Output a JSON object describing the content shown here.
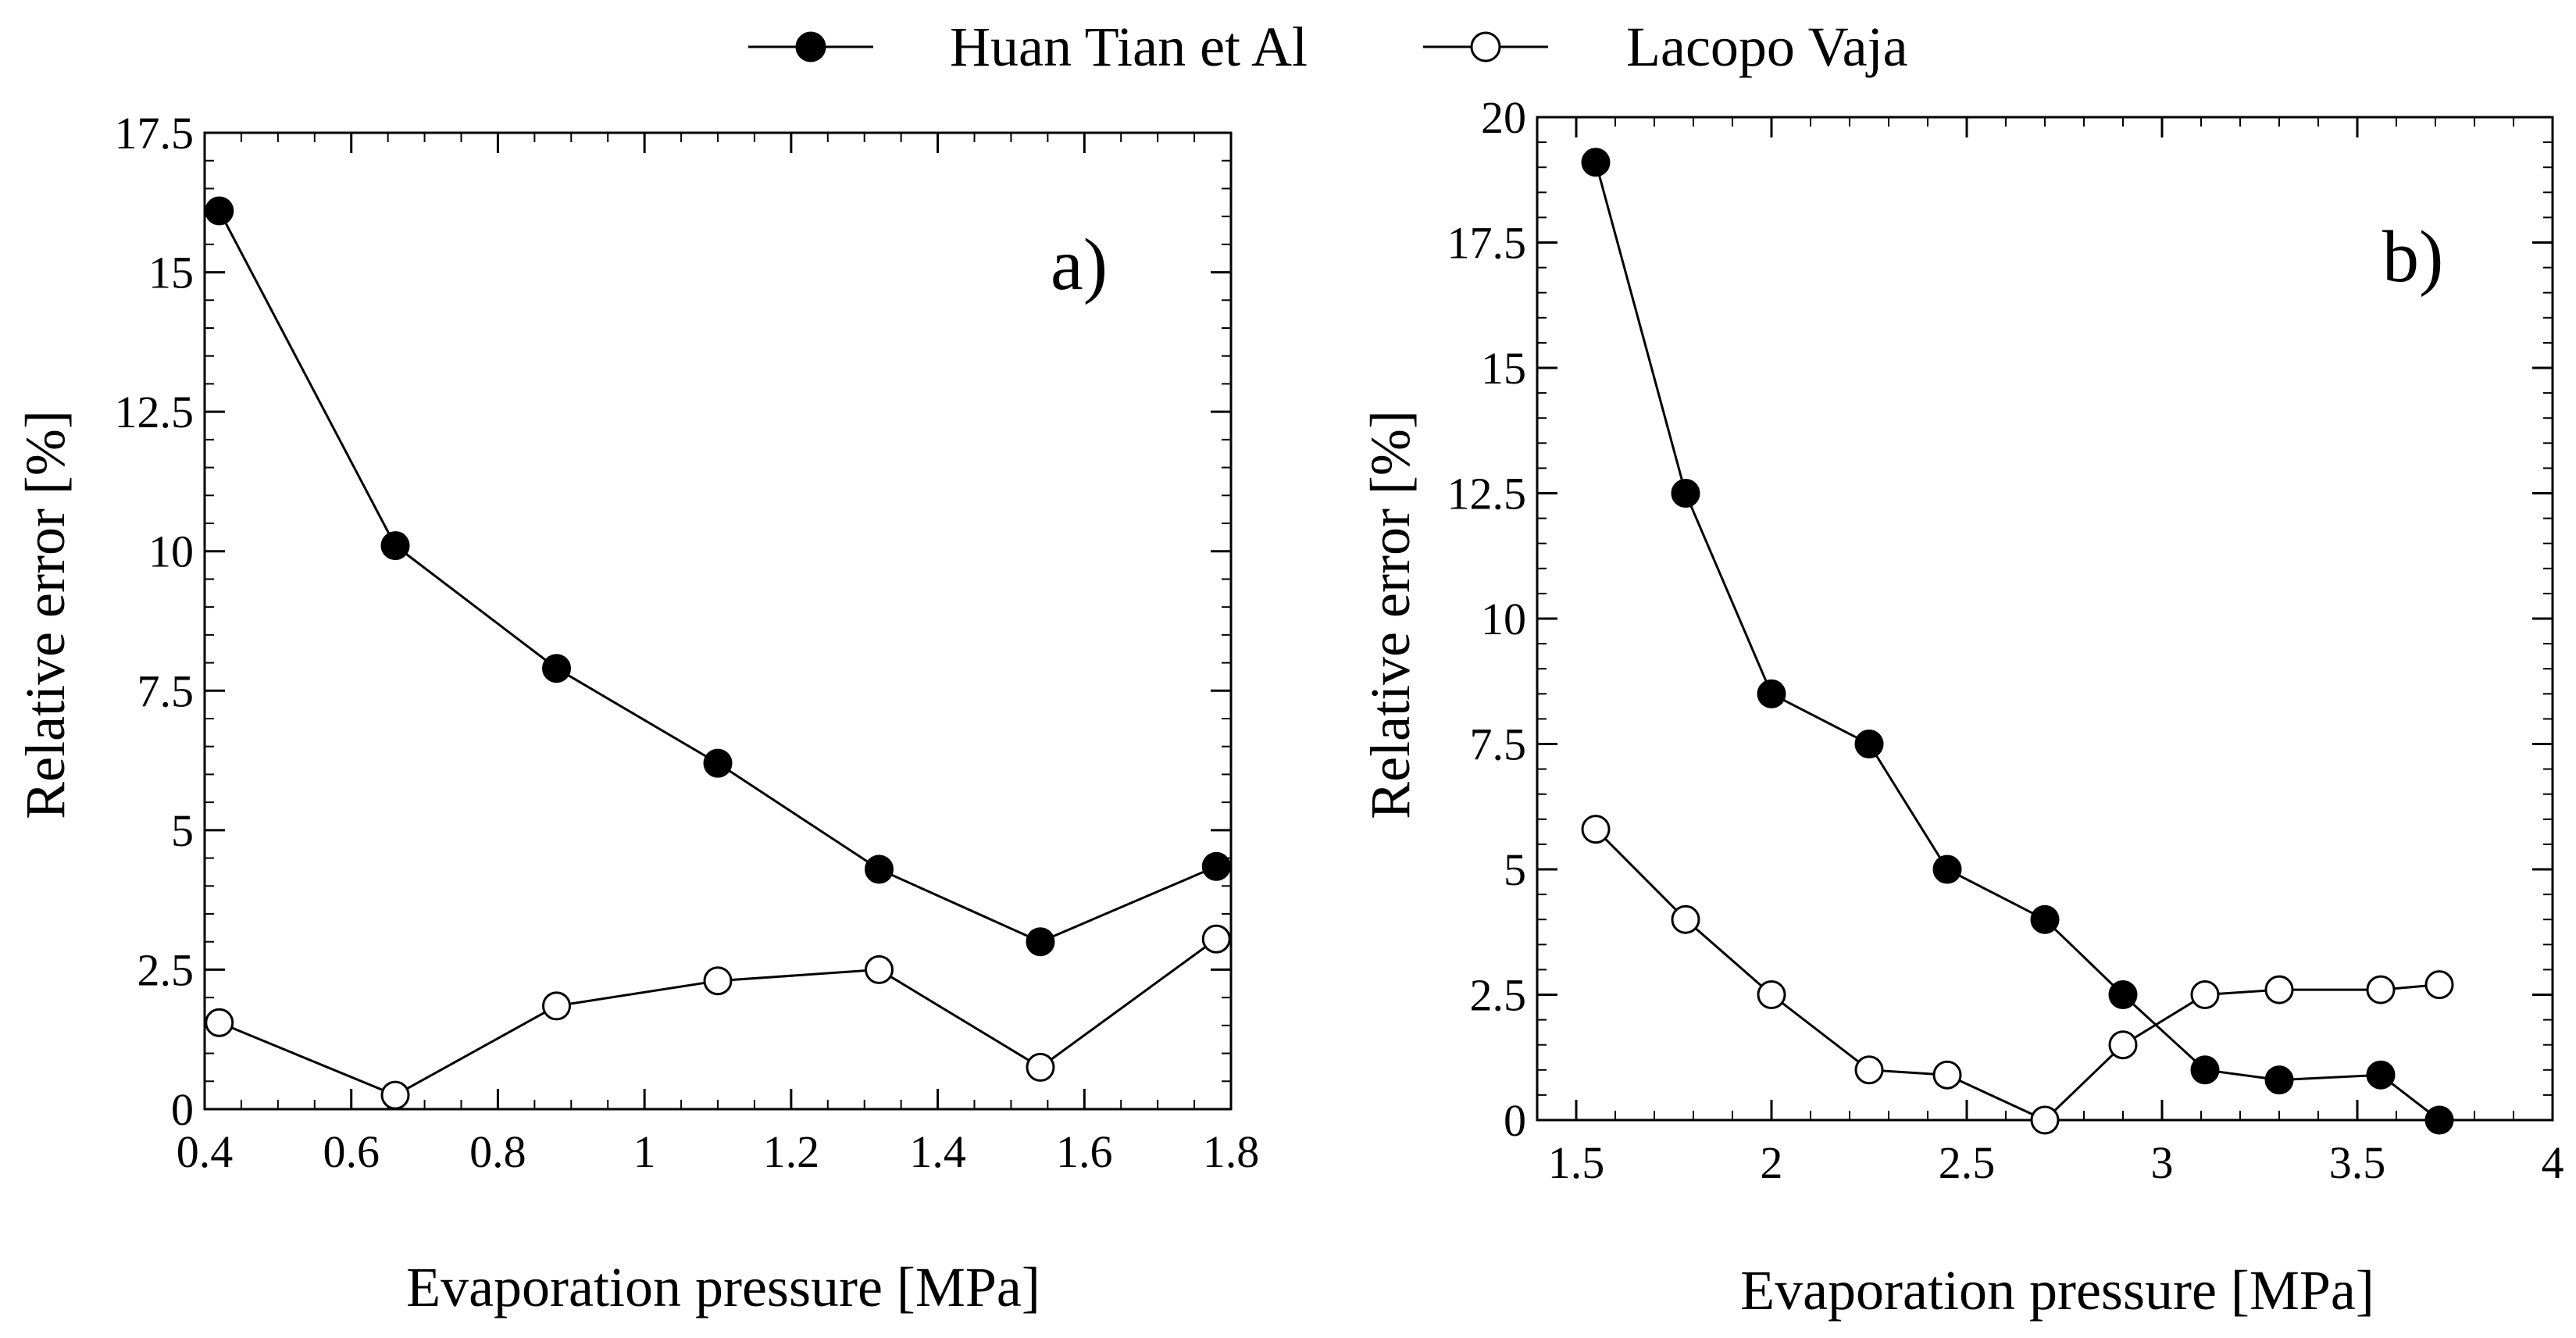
{
  "legend": {
    "entries": [
      {
        "name": "Huan Tian et Al",
        "marker": "filled-circle"
      },
      {
        "name": "Lacopo Vaja",
        "marker": "open-circle"
      }
    ]
  },
  "colors": {
    "line": "#000000",
    "filled_marker": "#000000",
    "open_marker_fill": "#ffffff"
  },
  "chart_data": [
    {
      "type": "line",
      "panel_label": "a)",
      "xlabel": "Evaporation pressure [MPa]",
      "ylabel": "Relative error [%]",
      "xlim": [
        0.4,
        1.8
      ],
      "ylim": [
        0,
        17.5
      ],
      "xticks": [
        0.4,
        0.6,
        0.8,
        1,
        1.2,
        1.4,
        1.6,
        1.8
      ],
      "xtick_labels": [
        "0.4",
        "0.6",
        "0.8",
        "1",
        "1.2",
        "1.4",
        "1.6",
        "1.8"
      ],
      "yticks": [
        0,
        2.5,
        5,
        7.5,
        10,
        12.5,
        15,
        17.5
      ],
      "ytick_labels": [
        "0",
        "2.5",
        "5",
        "7.5",
        "10",
        "12.5",
        "15",
        "17.5"
      ],
      "x_minor_step": 0.05,
      "y_minor_step": 0.5,
      "series": [
        {
          "name": "Huan Tian et Al",
          "marker": "filled",
          "x": [
            0.42,
            0.66,
            0.88,
            1.1,
            1.32,
            1.54,
            1.78
          ],
          "y": [
            16.1,
            10.1,
            7.9,
            6.2,
            4.3,
            3.0,
            4.35
          ]
        },
        {
          "name": "Lacopo Vaja",
          "marker": "open",
          "x": [
            0.42,
            0.66,
            0.88,
            1.1,
            1.32,
            1.54,
            1.78
          ],
          "y": [
            1.55,
            0.25,
            1.85,
            2.3,
            2.5,
            0.75,
            3.05
          ]
        }
      ]
    },
    {
      "type": "line",
      "panel_label": "b)",
      "xlabel": "Evaporation pressure [MPa]",
      "ylabel": "Relative error [%]",
      "xlim": [
        1.4,
        4
      ],
      "ylim": [
        0,
        20
      ],
      "xticks": [
        1.5,
        2,
        2.5,
        3,
        3.5,
        4
      ],
      "xtick_labels": [
        "1.5",
        "2",
        "2.5",
        "3",
        "3.5",
        "4"
      ],
      "yticks": [
        0,
        2.5,
        5,
        7.5,
        10,
        12.5,
        15,
        17.5,
        20
      ],
      "ytick_labels": [
        "0",
        "2.5",
        "5",
        "7.5",
        "10",
        "12.5",
        "15",
        "17.5",
        "20"
      ],
      "x_minor_step": 0.1,
      "y_minor_step": 0.5,
      "series": [
        {
          "name": "Huan Tian et Al",
          "marker": "filled",
          "x": [
            1.55,
            1.78,
            2.0,
            2.25,
            2.45,
            2.7,
            2.9,
            3.11,
            3.3,
            3.56,
            3.71
          ],
          "y": [
            19.1,
            12.5,
            8.5,
            7.5,
            5.0,
            4.0,
            2.5,
            1.0,
            0.8,
            0.9,
            0.0
          ]
        },
        {
          "name": "Lacopo Vaja",
          "marker": "open",
          "x": [
            1.55,
            1.78,
            2.0,
            2.25,
            2.45,
            2.7,
            2.9,
            3.11,
            3.3,
            3.56,
            3.71
          ],
          "y": [
            5.8,
            4.0,
            2.5,
            1.0,
            0.9,
            0.0,
            1.5,
            2.5,
            2.6,
            2.6,
            2.7
          ]
        }
      ]
    }
  ]
}
